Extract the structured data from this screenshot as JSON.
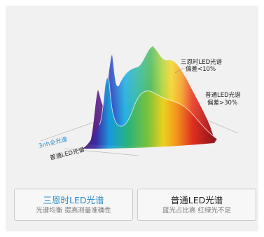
{
  "diagram": {
    "annotation_sanen": {
      "line1": "三恩时LED光谱",
      "line2": "偏差<10%"
    },
    "annotation_common": {
      "line1": "普通LED光谱",
      "line2": "偏差>30%"
    },
    "axis_label_sun": "3nh全光谱",
    "axis_label_common": "普通LED光谱"
  },
  "cards": [
    {
      "title": "三恩时LED光谱",
      "subtitle": "光谱均衡 提高测量准确性",
      "title_color": "#2b8ccc"
    },
    {
      "title": "普通LED光谱",
      "subtitle": "蓝光占比高 红绿光不足",
      "title_color": "#222222"
    }
  ],
  "colors": {
    "background": "#f1f1f1",
    "sun_label": "#2b8ccc",
    "spectrum_stops": [
      "#5a1a8a",
      "#1e3fbf",
      "#13a8e0",
      "#3cb34a",
      "#f2d21b",
      "#e8361c",
      "#8c1010"
    ]
  }
}
